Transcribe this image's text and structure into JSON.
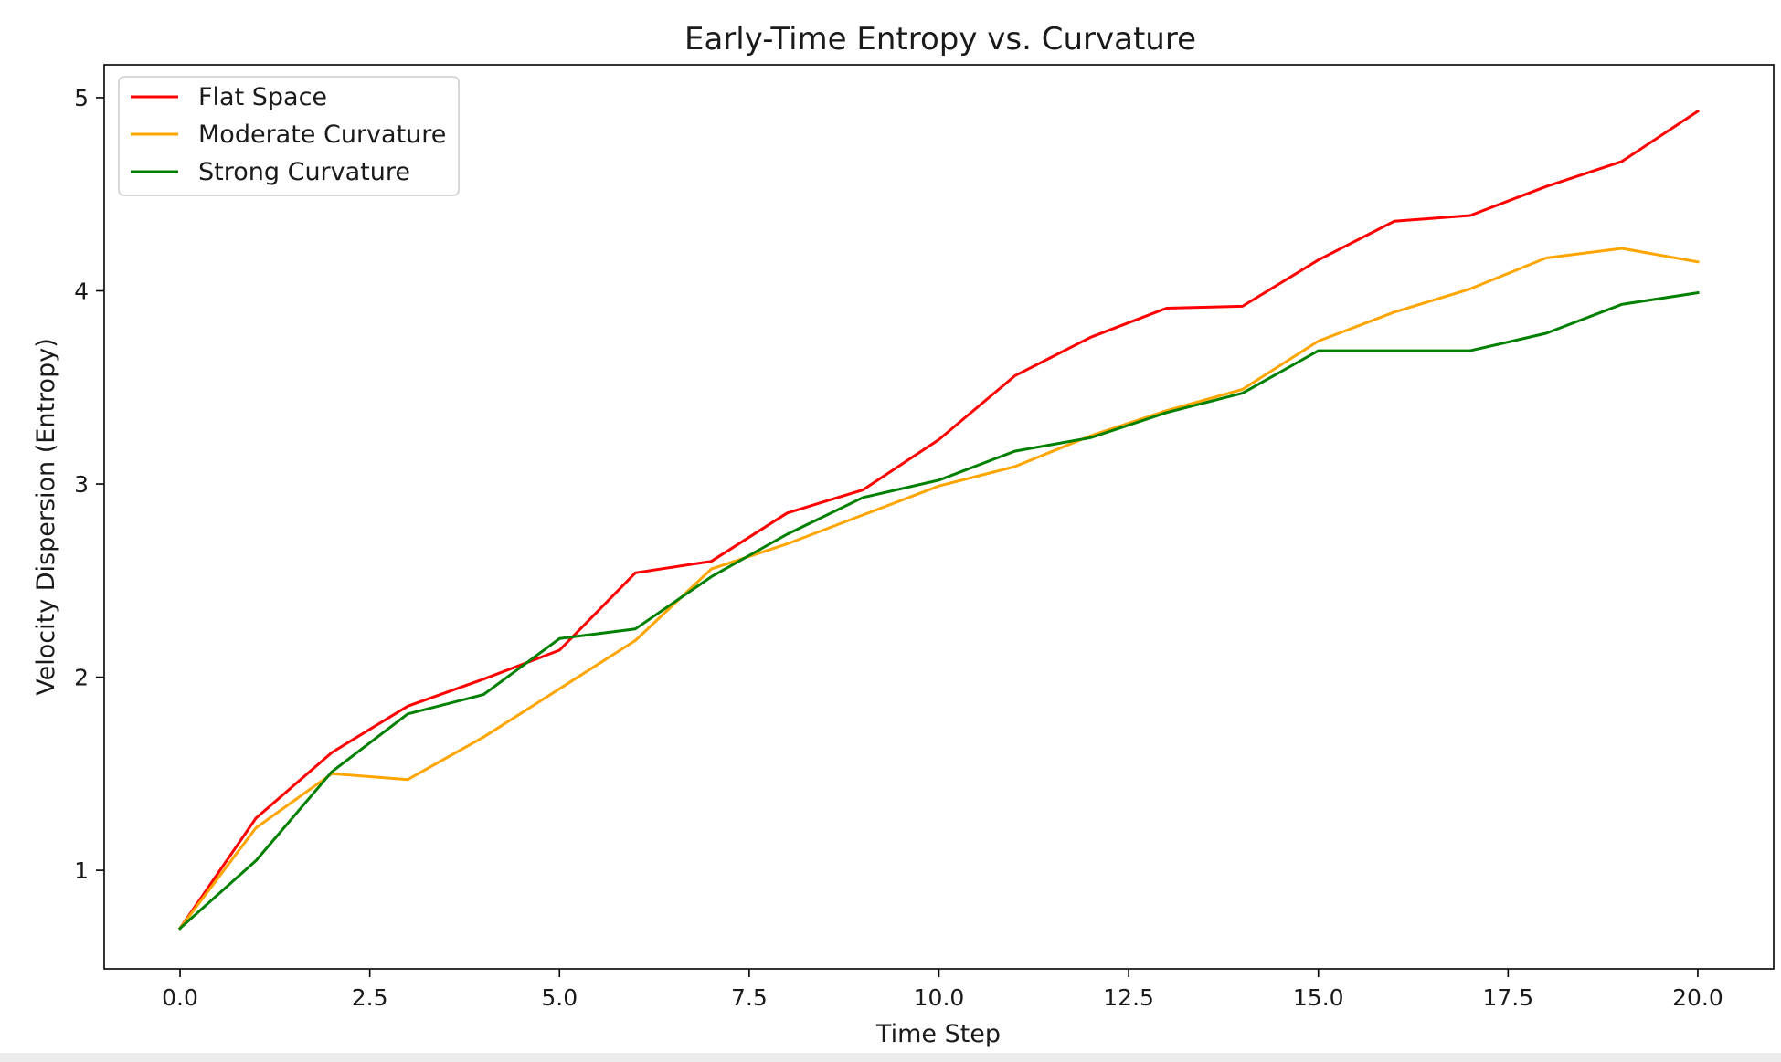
{
  "chart_data": {
    "type": "line",
    "title": "Early-Time Entropy vs. Curvature",
    "xlabel": "Time Step",
    "ylabel": "Velocity Dispersion (Entropy)",
    "xlim": [
      -1.0,
      21.0
    ],
    "ylim": [
      0.49,
      5.17
    ],
    "xticks": [
      0.0,
      2.5,
      5.0,
      7.5,
      10.0,
      12.5,
      15.0,
      17.5,
      20.0
    ],
    "xtick_labels": [
      "0.0",
      "2.5",
      "5.0",
      "7.5",
      "10.0",
      "12.5",
      "15.0",
      "17.5",
      "20.0"
    ],
    "yticks": [
      1,
      2,
      3,
      4,
      5
    ],
    "ytick_labels": [
      "1",
      "2",
      "3",
      "4",
      "5"
    ],
    "grid": false,
    "legend_position": "top-left",
    "x": [
      0,
      1,
      2,
      3,
      4,
      5,
      6,
      7,
      8,
      9,
      10,
      11,
      12,
      13,
      14,
      15,
      16,
      17,
      18,
      19,
      20
    ],
    "series": [
      {
        "name": "Flat Space",
        "color": "#ff0000",
        "values": [
          0.7,
          1.27,
          1.61,
          1.85,
          1.99,
          2.14,
          2.54,
          2.6,
          2.85,
          2.97,
          3.23,
          3.56,
          3.76,
          3.91,
          3.92,
          4.16,
          4.36,
          4.39,
          4.54,
          4.67,
          4.93
        ]
      },
      {
        "name": "Moderate Curvature",
        "color": "#ffa500",
        "values": [
          0.7,
          1.22,
          1.5,
          1.47,
          1.69,
          1.94,
          2.19,
          2.56,
          2.69,
          2.84,
          2.99,
          3.09,
          3.25,
          3.38,
          3.49,
          3.74,
          3.89,
          4.01,
          4.17,
          4.22,
          4.15
        ]
      },
      {
        "name": "Strong Curvature",
        "color": "#008000",
        "values": [
          0.7,
          1.05,
          1.51,
          1.81,
          1.91,
          2.2,
          2.25,
          2.52,
          2.74,
          2.93,
          3.02,
          3.17,
          3.24,
          3.37,
          3.47,
          3.69,
          3.69,
          3.69,
          3.78,
          3.93,
          3.99
        ]
      }
    ]
  }
}
